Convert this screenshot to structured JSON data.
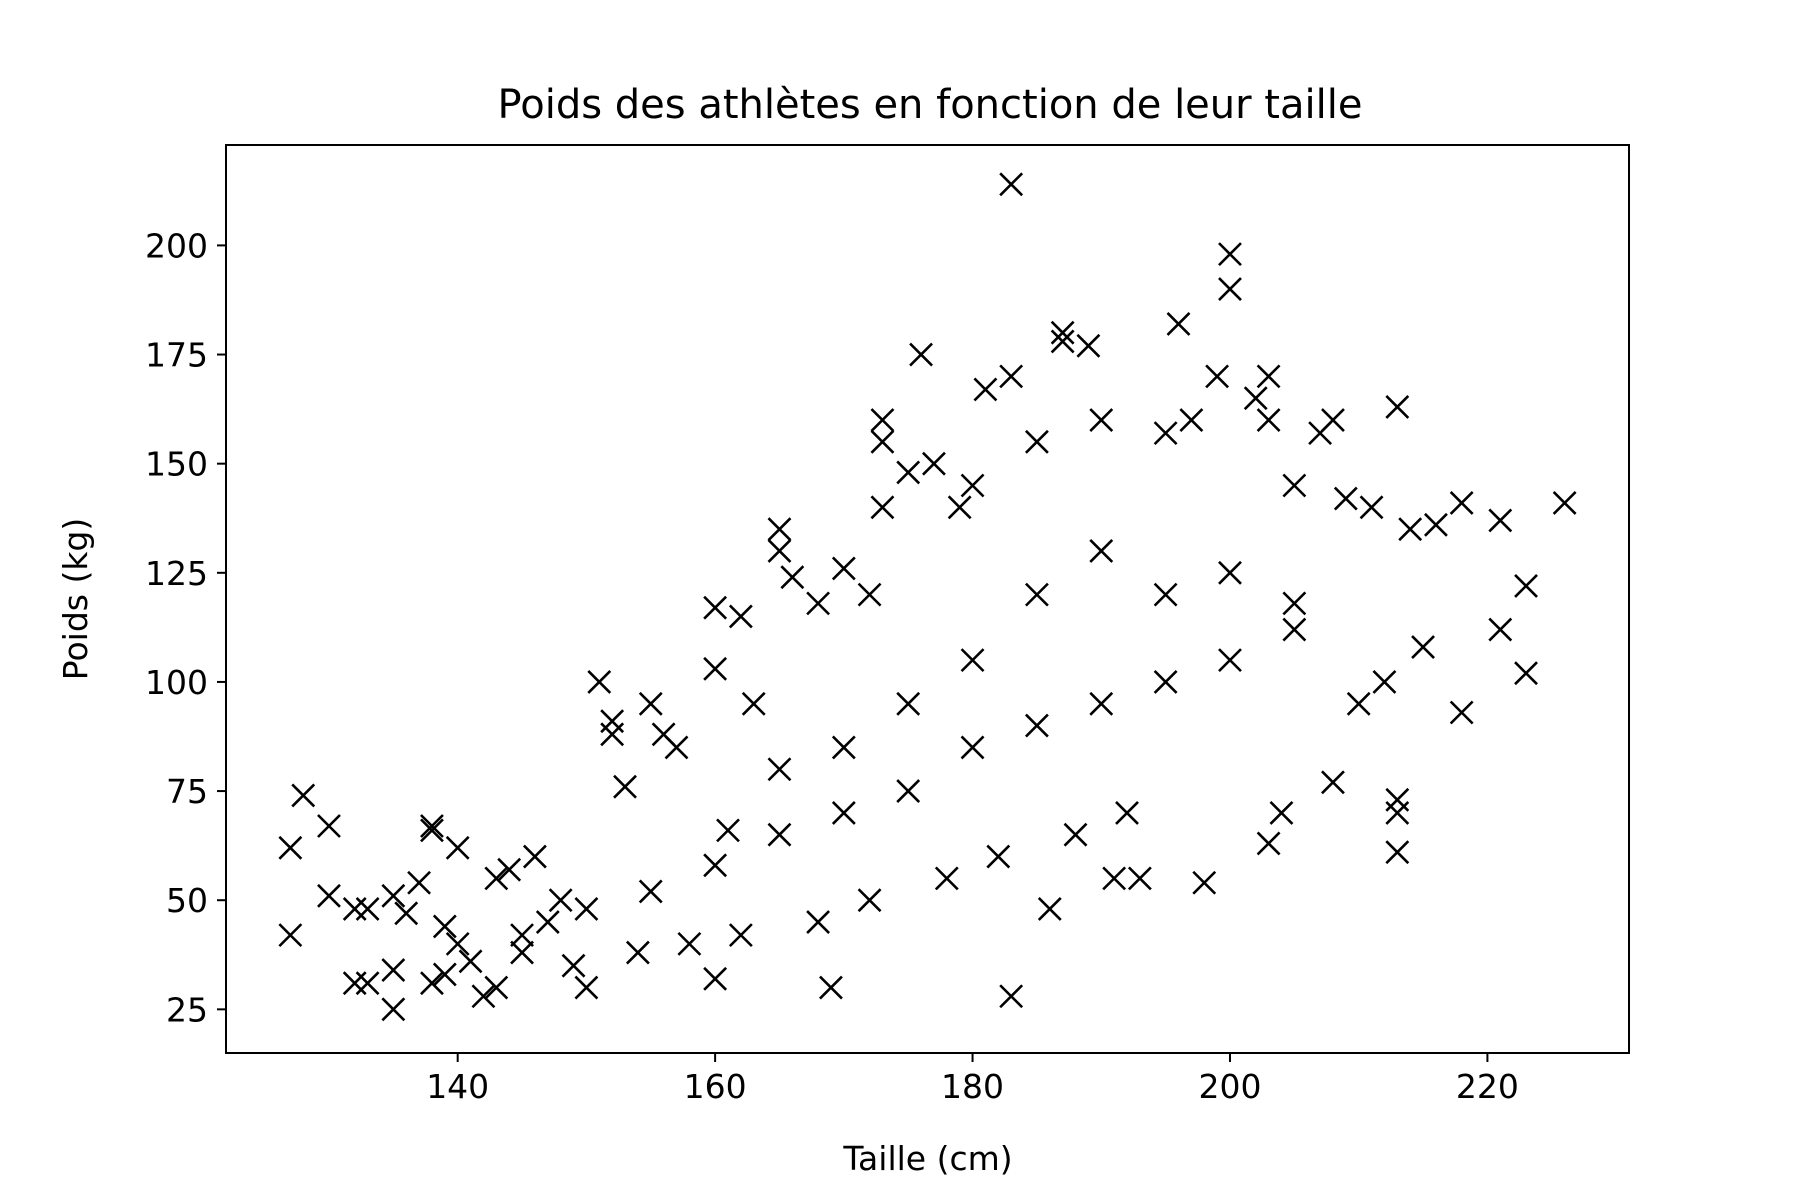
{
  "chart_data": {
    "type": "scatter",
    "title": "Poids des athlètes en fonction de leur taille",
    "xlabel": "Taille (cm)",
    "ylabel": "Poids (kg)",
    "xlim": [
      122,
      231
    ],
    "ylim": [
      15,
      223
    ],
    "xticks": [
      140,
      160,
      180,
      200,
      220
    ],
    "yticks": [
      25,
      50,
      75,
      100,
      125,
      150,
      175,
      200
    ],
    "marker": "x",
    "marker_color": "#000000",
    "grid": false,
    "legend": "none",
    "series": [
      {
        "points": [
          [
            127,
            62
          ],
          [
            127,
            42
          ],
          [
            128,
            74
          ],
          [
            130,
            67
          ],
          [
            130,
            51
          ],
          [
            132,
            48
          ],
          [
            133,
            48
          ],
          [
            132,
            31
          ],
          [
            133,
            31
          ],
          [
            135,
            25
          ],
          [
            135,
            34
          ],
          [
            135,
            51
          ],
          [
            136,
            47
          ],
          [
            137,
            54
          ],
          [
            138,
            67
          ],
          [
            138,
            66
          ],
          [
            139,
            44
          ],
          [
            140,
            62
          ],
          [
            138,
            31
          ],
          [
            139,
            33
          ],
          [
            140,
            40
          ],
          [
            141,
            36
          ],
          [
            142,
            28
          ],
          [
            143,
            55
          ],
          [
            144,
            57
          ],
          [
            146,
            60
          ],
          [
            143,
            30
          ],
          [
            145,
            38
          ],
          [
            147,
            45
          ],
          [
            148,
            50
          ],
          [
            149,
            35
          ],
          [
            150,
            30
          ],
          [
            151,
            100
          ],
          [
            152,
            91
          ],
          [
            152,
            88
          ],
          [
            153,
            76
          ],
          [
            155,
            95
          ],
          [
            156,
            88
          ],
          [
            157,
            85
          ],
          [
            160,
            117
          ],
          [
            160,
            32
          ],
          [
            160,
            103
          ],
          [
            161,
            66
          ],
          [
            162,
            115
          ],
          [
            163,
            95
          ],
          [
            165,
            135
          ],
          [
            165,
            130
          ],
          [
            166,
            124
          ],
          [
            168,
            118
          ],
          [
            169,
            30
          ],
          [
            170,
            126
          ],
          [
            172,
            120
          ],
          [
            173,
            160
          ],
          [
            173,
            155
          ],
          [
            173,
            140
          ],
          [
            175,
            148
          ],
          [
            176,
            175
          ],
          [
            177,
            150
          ],
          [
            179,
            140
          ],
          [
            180,
            145
          ],
          [
            181,
            167
          ],
          [
            183,
            214
          ],
          [
            183,
            170
          ],
          [
            183,
            28
          ],
          [
            185,
            155
          ],
          [
            186,
            48
          ],
          [
            187,
            180
          ],
          [
            187,
            178
          ],
          [
            189,
            177
          ],
          [
            190,
            160
          ],
          [
            191,
            55
          ],
          [
            193,
            55
          ],
          [
            195,
            157
          ],
          [
            196,
            182
          ],
          [
            197,
            160
          ],
          [
            198,
            54
          ],
          [
            199,
            170
          ],
          [
            200,
            198
          ],
          [
            200,
            190
          ],
          [
            202,
            165
          ],
          [
            203,
            170
          ],
          [
            203,
            160
          ],
          [
            203,
            63
          ],
          [
            204,
            70
          ],
          [
            205,
            145
          ],
          [
            207,
            157
          ],
          [
            208,
            160
          ],
          [
            208,
            77
          ],
          [
            209,
            142
          ],
          [
            211,
            140
          ],
          [
            213,
            163
          ],
          [
            213,
            73
          ],
          [
            213,
            70
          ],
          [
            213,
            61
          ],
          [
            214,
            135
          ],
          [
            216,
            136
          ],
          [
            218,
            141
          ],
          [
            218,
            93
          ],
          [
            221,
            137
          ],
          [
            221,
            112
          ],
          [
            223,
            122
          ],
          [
            223,
            102
          ],
          [
            226,
            141
          ],
          [
            210,
            95
          ],
          [
            212,
            100
          ],
          [
            215,
            108
          ],
          [
            205,
            112
          ],
          [
            200,
            105
          ],
          [
            195,
            100
          ],
          [
            190,
            95
          ],
          [
            185,
            90
          ],
          [
            180,
            85
          ],
          [
            175,
            75
          ],
          [
            170,
            70
          ],
          [
            165,
            65
          ],
          [
            160,
            58
          ],
          [
            155,
            52
          ],
          [
            150,
            48
          ],
          [
            145,
            42
          ],
          [
            190,
            130
          ],
          [
            185,
            120
          ],
          [
            180,
            105
          ],
          [
            175,
            95
          ],
          [
            170,
            85
          ],
          [
            165,
            80
          ],
          [
            195,
            120
          ],
          [
            200,
            125
          ],
          [
            205,
            118
          ],
          [
            192,
            70
          ],
          [
            188,
            65
          ],
          [
            182,
            60
          ],
          [
            178,
            55
          ],
          [
            172,
            50
          ],
          [
            168,
            45
          ],
          [
            162,
            42
          ],
          [
            158,
            40
          ],
          [
            154,
            38
          ]
        ]
      }
    ]
  }
}
